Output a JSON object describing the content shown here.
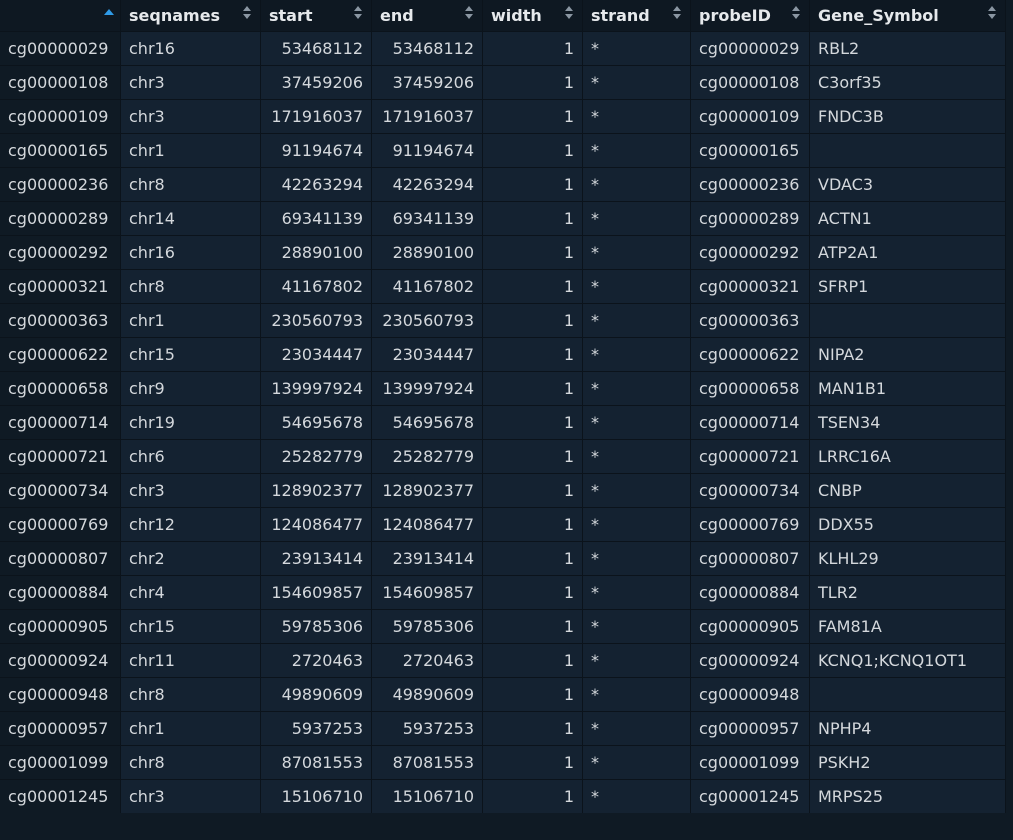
{
  "columns": [
    {
      "key": "rowname",
      "label": "",
      "sort": "asc"
    },
    {
      "key": "seqnames",
      "label": "seqnames",
      "sort": "both"
    },
    {
      "key": "start",
      "label": "start",
      "sort": "both"
    },
    {
      "key": "end",
      "label": "end",
      "sort": "both"
    },
    {
      "key": "width",
      "label": "width",
      "sort": "both"
    },
    {
      "key": "strand",
      "label": "strand",
      "sort": "both"
    },
    {
      "key": "probeID",
      "label": "probeID",
      "sort": "both"
    },
    {
      "key": "Gene_Symbol",
      "label": "Gene_Symbol",
      "sort": "both"
    }
  ],
  "rows": [
    [
      "cg00000029",
      "chr16",
      "53468112",
      "53468112",
      "1",
      "*",
      "cg00000029",
      "RBL2"
    ],
    [
      "cg00000108",
      "chr3",
      "37459206",
      "37459206",
      "1",
      "*",
      "cg00000108",
      "C3orf35"
    ],
    [
      "cg00000109",
      "chr3",
      "171916037",
      "171916037",
      "1",
      "*",
      "cg00000109",
      "FNDC3B"
    ],
    [
      "cg00000165",
      "chr1",
      "91194674",
      "91194674",
      "1",
      "*",
      "cg00000165",
      ""
    ],
    [
      "cg00000236",
      "chr8",
      "42263294",
      "42263294",
      "1",
      "*",
      "cg00000236",
      "VDAC3"
    ],
    [
      "cg00000289",
      "chr14",
      "69341139",
      "69341139",
      "1",
      "*",
      "cg00000289",
      "ACTN1"
    ],
    [
      "cg00000292",
      "chr16",
      "28890100",
      "28890100",
      "1",
      "*",
      "cg00000292",
      "ATP2A1"
    ],
    [
      "cg00000321",
      "chr8",
      "41167802",
      "41167802",
      "1",
      "*",
      "cg00000321",
      "SFRP1"
    ],
    [
      "cg00000363",
      "chr1",
      "230560793",
      "230560793",
      "1",
      "*",
      "cg00000363",
      ""
    ],
    [
      "cg00000622",
      "chr15",
      "23034447",
      "23034447",
      "1",
      "*",
      "cg00000622",
      "NIPA2"
    ],
    [
      "cg00000658",
      "chr9",
      "139997924",
      "139997924",
      "1",
      "*",
      "cg00000658",
      "MAN1B1"
    ],
    [
      "cg00000714",
      "chr19",
      "54695678",
      "54695678",
      "1",
      "*",
      "cg00000714",
      "TSEN34"
    ],
    [
      "cg00000721",
      "chr6",
      "25282779",
      "25282779",
      "1",
      "*",
      "cg00000721",
      "LRRC16A"
    ],
    [
      "cg00000734",
      "chr3",
      "128902377",
      "128902377",
      "1",
      "*",
      "cg00000734",
      "CNBP"
    ],
    [
      "cg00000769",
      "chr12",
      "124086477",
      "124086477",
      "1",
      "*",
      "cg00000769",
      "DDX55"
    ],
    [
      "cg00000807",
      "chr2",
      "23913414",
      "23913414",
      "1",
      "*",
      "cg00000807",
      "KLHL29"
    ],
    [
      "cg00000884",
      "chr4",
      "154609857",
      "154609857",
      "1",
      "*",
      "cg00000884",
      "TLR2"
    ],
    [
      "cg00000905",
      "chr15",
      "59785306",
      "59785306",
      "1",
      "*",
      "cg00000905",
      "FAM81A"
    ],
    [
      "cg00000924",
      "chr11",
      "2720463",
      "2720463",
      "1",
      "*",
      "cg00000924",
      "KCNQ1;KCNQ1OT1"
    ],
    [
      "cg00000948",
      "chr8",
      "49890609",
      "49890609",
      "1",
      "*",
      "cg00000948",
      ""
    ],
    [
      "cg00000957",
      "chr1",
      "5937253",
      "5937253",
      "1",
      "*",
      "cg00000957",
      "NPHP4"
    ],
    [
      "cg00001099",
      "chr8",
      "87081553",
      "87081553",
      "1",
      "*",
      "cg00001099",
      "PSKH2"
    ],
    [
      "cg00001245",
      "chr3",
      "15106710",
      "15106710",
      "1",
      "*",
      "cg00001245",
      "MRPS25"
    ]
  ],
  "icons": {
    "sort_both": "sort-arrows-icon",
    "sort_asc": "sort-ascending-icon"
  },
  "colors": {
    "background": "#0f1a24",
    "cell": "#142231",
    "text": "#d4d8dc",
    "sort_active": "#2f9be8"
  }
}
